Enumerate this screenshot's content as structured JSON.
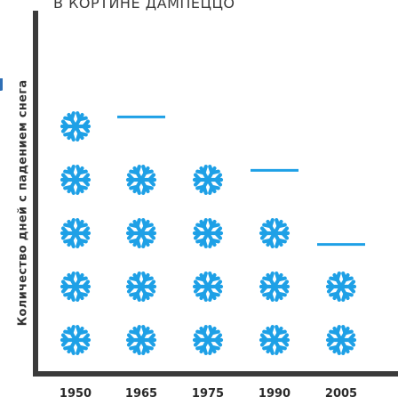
{
  "chart_data": {
    "type": "bar",
    "title": "В КОРТИНЕ ДАМПЕЦЦО",
    "xlabel": "",
    "ylabel": "Количество дней с падением снега",
    "categories": [
      "1950",
      "1965",
      "1975",
      "1990",
      "2005"
    ],
    "values": [
      5,
      4.7,
      4,
      3.7,
      2.3
    ],
    "unit_per_icon": 1,
    "icon": "snowflake-icon",
    "colors": {
      "icon": "#1ea0e6",
      "axis": "#3b3b3b",
      "text": "#2a2a2a"
    },
    "grid": false,
    "legend": "none"
  }
}
